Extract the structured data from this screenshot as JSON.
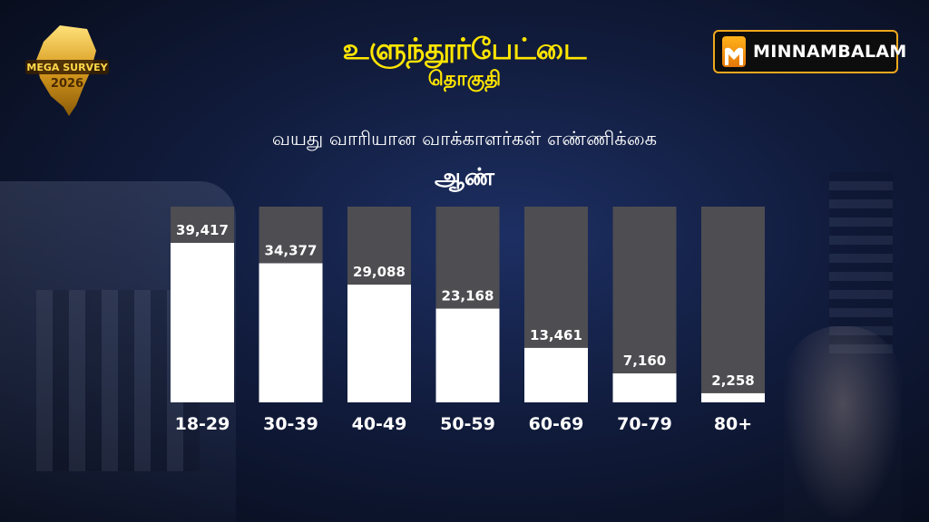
{
  "header": {
    "title": "உளுந்தூர்பேட்டை",
    "subtitle": "தொகுதி"
  },
  "badge": {
    "line1": "MEGA SURVEY",
    "line2": "2026"
  },
  "brand": {
    "name": "MINNAMBALAM",
    "color": "#f0a81c"
  },
  "chart_data": {
    "type": "bar",
    "title": "வயது வாரியான வாக்காளர்கள் எண்ணிக்கை",
    "subtitle": "ஆண்",
    "categories": [
      "18-29",
      "30-39",
      "40-49",
      "50-59",
      "60-69",
      "70-79",
      "80+"
    ],
    "values": [
      39417,
      34377,
      29088,
      23168,
      13461,
      7160,
      2258
    ],
    "value_labels": [
      "39,417",
      "34,377",
      "29,088",
      "23,168",
      "13,461",
      "7,160",
      "2,258"
    ],
    "xlabel": "",
    "ylabel": "",
    "ylim": [
      0,
      40000
    ],
    "grid": false,
    "legend": "none",
    "colors": {
      "bar": "#ffffff",
      "track": "#4d4d52",
      "label_on_track": "#ffffff",
      "axis_text": "#ffffff"
    }
  }
}
